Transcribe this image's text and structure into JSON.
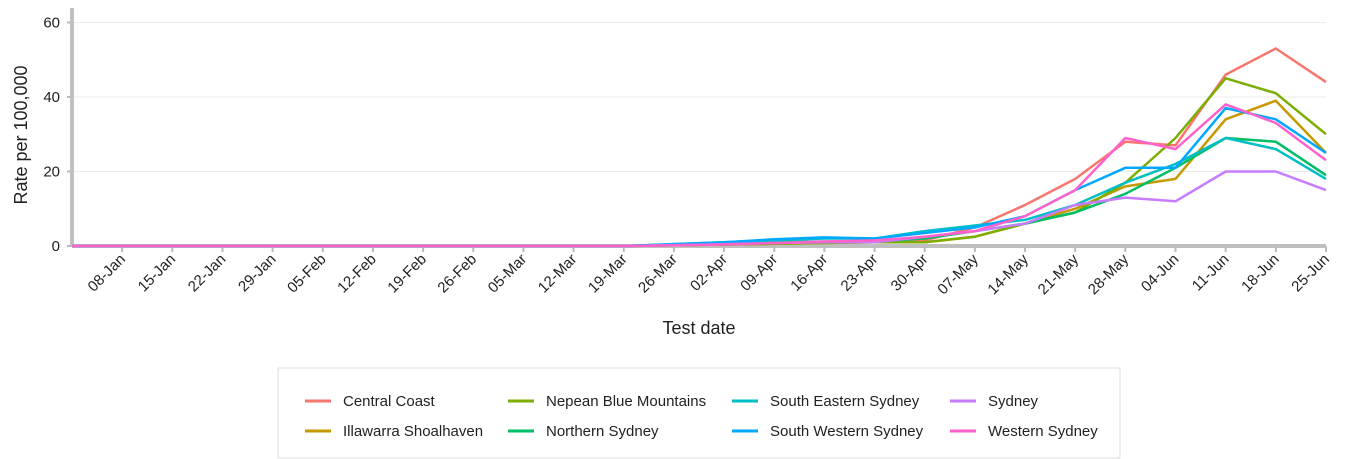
{
  "chart_data": {
    "type": "line",
    "y_label": "Rate per 100,000",
    "x_label": "Test date",
    "categories": [
      null,
      "08-Jan",
      "15-Jan",
      "22-Jan",
      "29-Jan",
      "05-Feb",
      "12-Feb",
      "19-Feb",
      "26-Feb",
      "05-Mar",
      "12-Mar",
      "19-Mar",
      "26-Mar",
      "02-Apr",
      "09-Apr",
      "16-Apr",
      "23-Apr",
      "30-Apr",
      "07-May",
      "14-May",
      "21-May",
      "28-May",
      "04-Jun",
      "11-Jun",
      "18-Jun",
      "25-Jun"
    ],
    "series": [
      {
        "name": "Central Coast",
        "color": "#f8766d",
        "values": [
          0,
          0,
          0,
          0,
          0,
          0,
          0,
          0,
          0,
          0,
          0,
          0,
          0.3,
          0.5,
          0.8,
          1,
          1,
          1.5,
          5,
          11,
          18,
          28,
          27,
          46,
          53,
          44
        ]
      },
      {
        "name": "Illawarra Shoalhaven",
        "color": "#c49a00",
        "values": [
          0,
          0,
          0,
          0,
          0,
          0,
          0,
          0,
          0,
          0,
          0,
          0,
          0.2,
          0.4,
          0.6,
          0.8,
          1,
          1,
          2.5,
          6,
          10,
          16,
          18,
          34,
          39,
          25
        ]
      },
      {
        "name": "Nepean Blue Mountains",
        "color": "#7cae00",
        "values": [
          0,
          0,
          0,
          0,
          0,
          0,
          0,
          0,
          0,
          0,
          0,
          0,
          0.2,
          0.4,
          0.6,
          0.8,
          1,
          1,
          2.5,
          6,
          9,
          17,
          29,
          45,
          41,
          30
        ]
      },
      {
        "name": "Northern Sydney",
        "color": "#00be67",
        "values": [
          0,
          0,
          0,
          0,
          0,
          0,
          0,
          0,
          0,
          0,
          0,
          0,
          0.3,
          0.6,
          1,
          1.2,
          1.2,
          2,
          4,
          6,
          9,
          14,
          21,
          29,
          28,
          19
        ]
      },
      {
        "name": "South Eastern Sydney",
        "color": "#00bfc4",
        "values": [
          0,
          0,
          0,
          0,
          0,
          0,
          0,
          0,
          0,
          0,
          0,
          0,
          0.5,
          1,
          1.5,
          2,
          2,
          4,
          5.5,
          7,
          11,
          17,
          22,
          29,
          26,
          18
        ]
      },
      {
        "name": "South Western Sydney",
        "color": "#00a9ff",
        "values": [
          0,
          0,
          0,
          0,
          0,
          0,
          0,
          0,
          0,
          0,
          0,
          0,
          0.5,
          1,
          1.8,
          2.3,
          2,
          3.5,
          5,
          8,
          15,
          21,
          21,
          37,
          34,
          25
        ]
      },
      {
        "name": "Sydney",
        "color": "#c77cff",
        "values": [
          0,
          0,
          0,
          0,
          0,
          0,
          0,
          0,
          0,
          0,
          0,
          0,
          0.2,
          0.5,
          0.8,
          1,
          1,
          2.5,
          4,
          6,
          11,
          13,
          12,
          20,
          20,
          15
        ]
      },
      {
        "name": "Western Sydney",
        "color": "#ff61cc",
        "values": [
          0,
          0,
          0,
          0,
          0,
          0,
          0,
          0,
          0,
          0,
          0,
          0,
          0.2,
          0.4,
          0.8,
          1.2,
          1.5,
          2.5,
          4,
          8,
          15,
          29,
          26,
          38,
          33,
          23
        ]
      }
    ],
    "ylim": [
      0,
      62
    ],
    "yticks": [
      0,
      20,
      40,
      60
    ],
    "grid": true
  }
}
